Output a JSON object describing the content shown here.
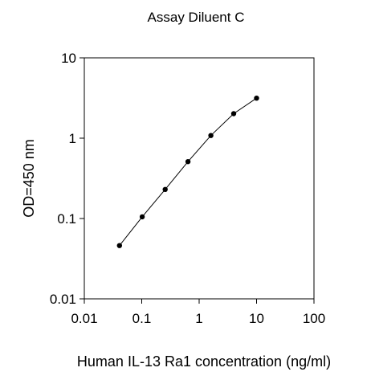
{
  "chart_data": {
    "type": "line",
    "title": "Assay Diluent C",
    "xlabel": "Human IL-13 Ra1 concentration (ng/ml)",
    "ylabel": "OD=450 nm",
    "x_scale": "log",
    "y_scale": "log",
    "xlim": [
      0.01,
      100
    ],
    "ylim": [
      0.01,
      10
    ],
    "x_ticks": [
      0.01,
      0.1,
      1,
      10,
      100
    ],
    "x_tick_labels": [
      "0.01",
      "0.1",
      "1",
      "10",
      "100"
    ],
    "y_ticks": [
      0.01,
      0.1,
      1,
      10
    ],
    "y_tick_labels": [
      "0.01",
      "0.1",
      "1",
      "10"
    ],
    "grid": false,
    "legend": "none",
    "line_color": "#000000",
    "marker": "filled-circle",
    "series": [
      {
        "x": [
          0.041,
          0.102,
          0.256,
          0.64,
          1.6,
          4.0,
          10.0
        ],
        "y": [
          0.046,
          0.105,
          0.23,
          0.51,
          1.08,
          2.02,
          3.15
        ]
      }
    ]
  }
}
